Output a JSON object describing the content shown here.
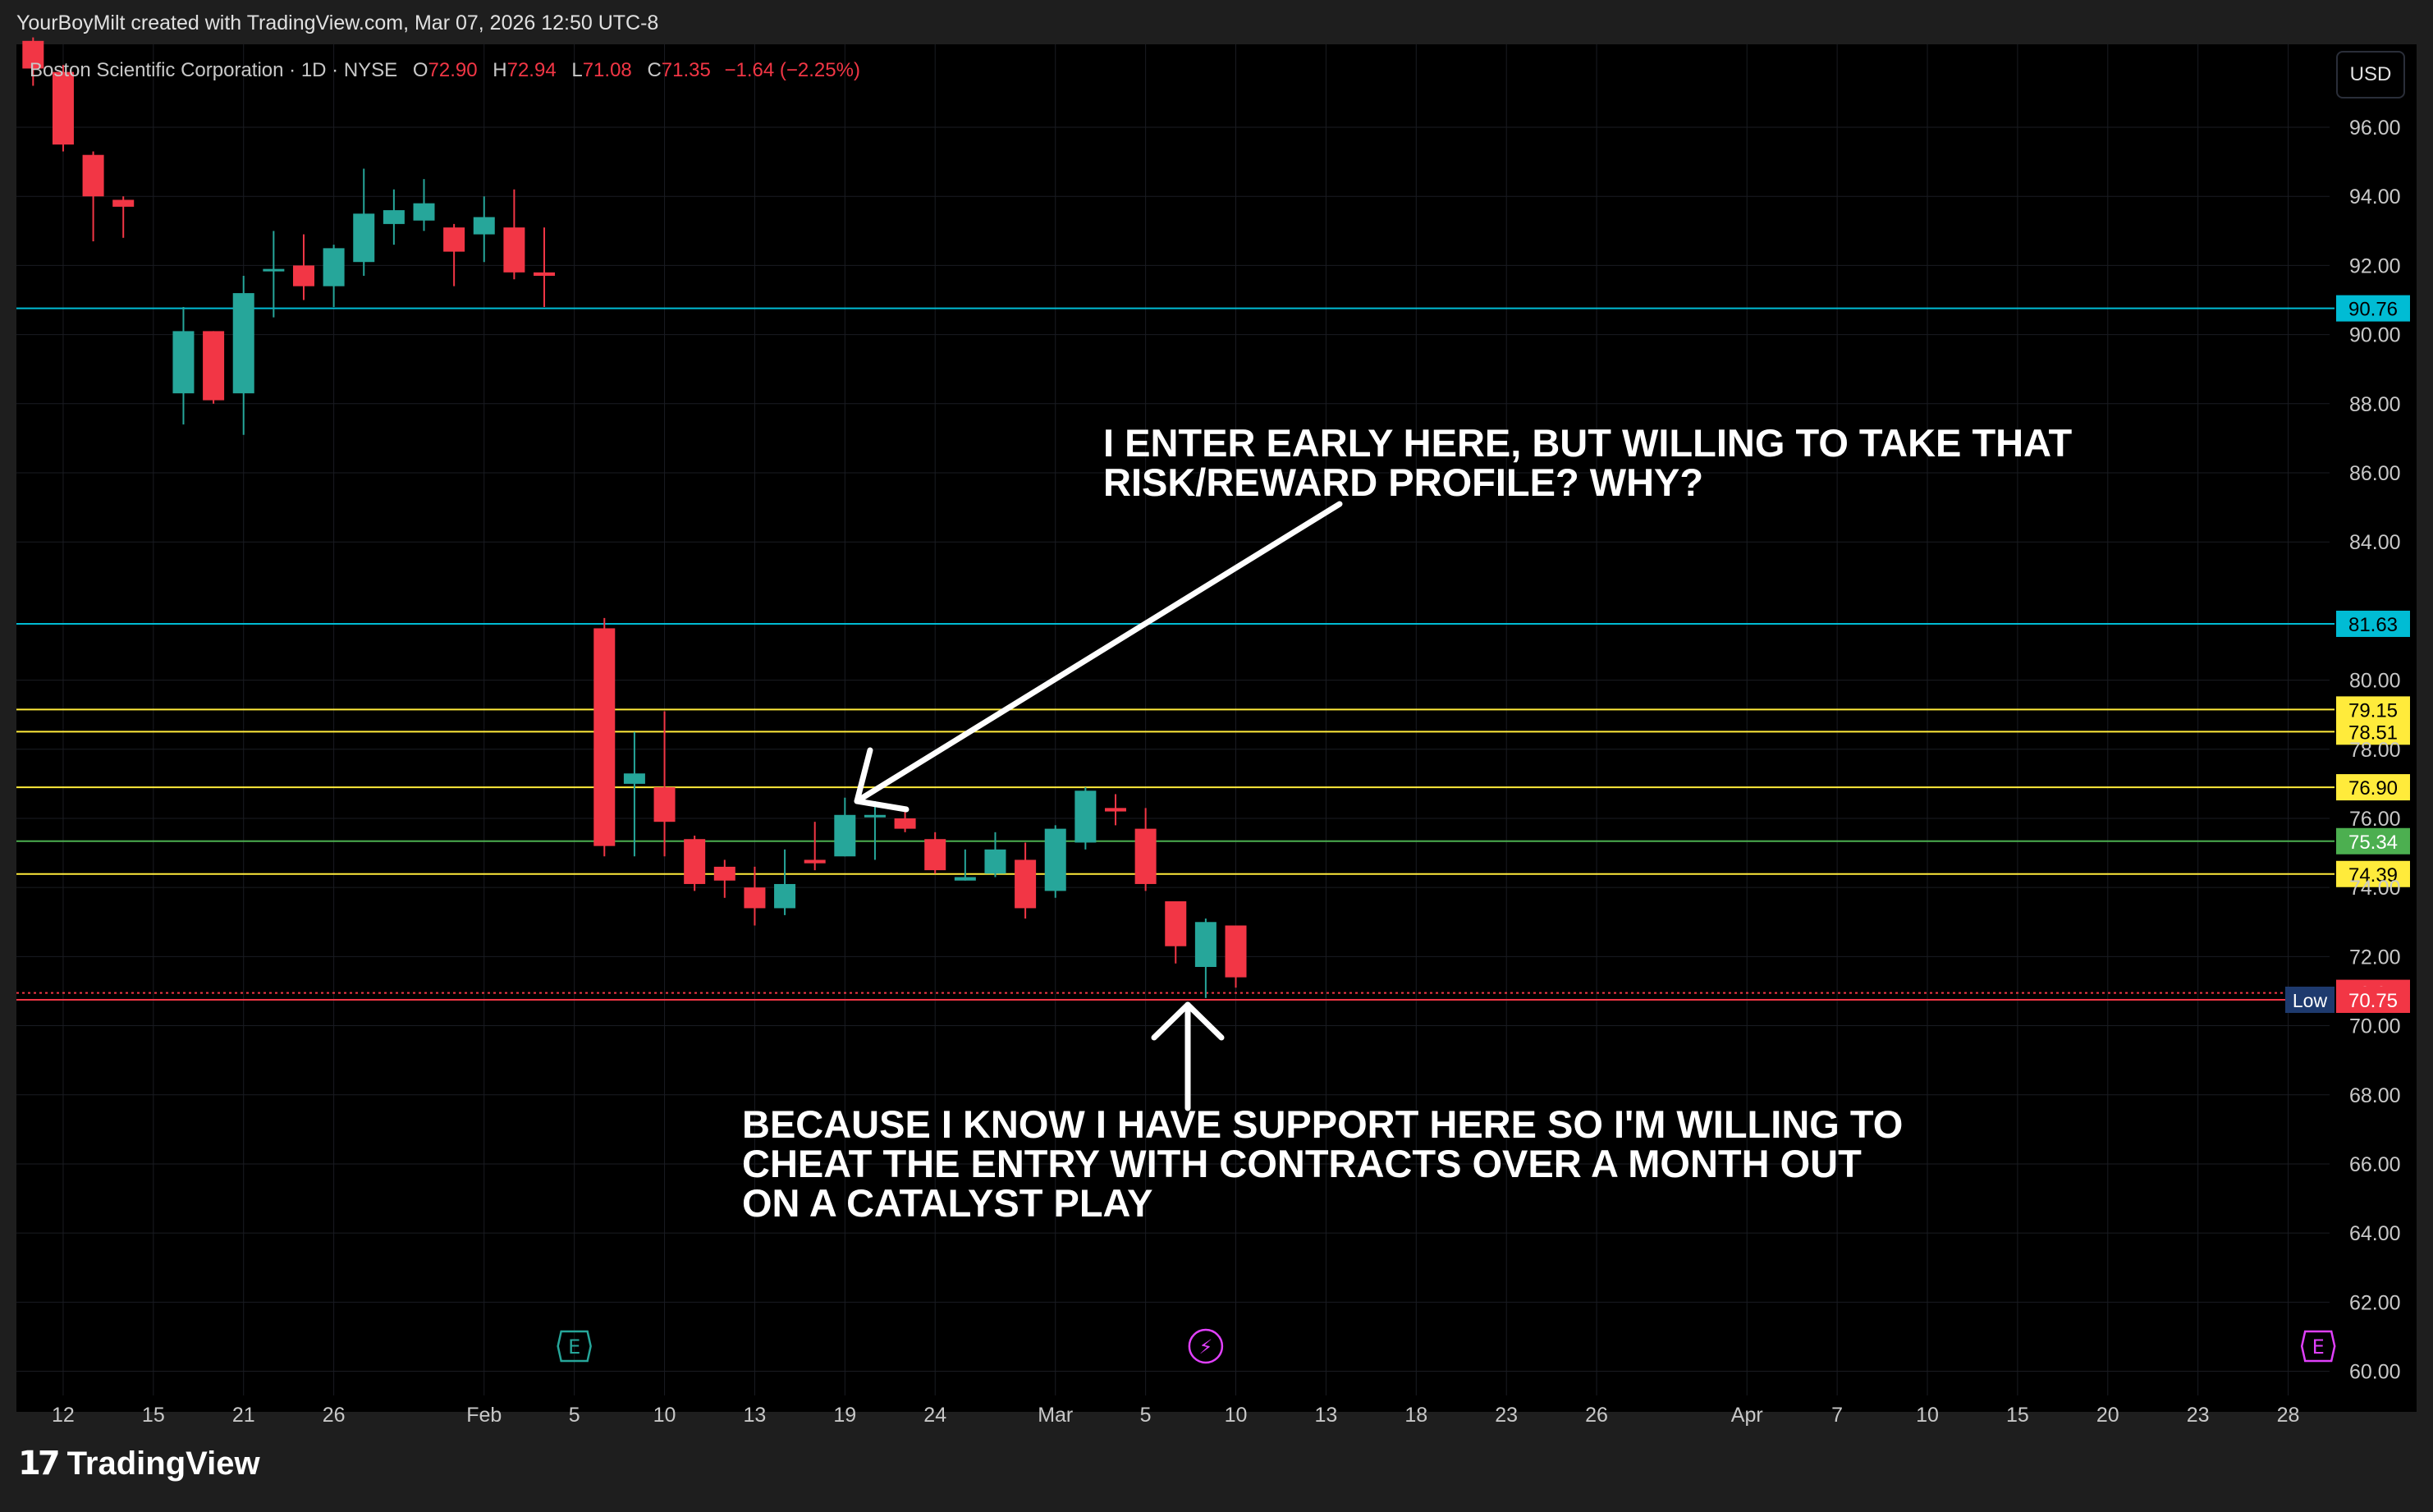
{
  "header": {
    "credit": "YourBoyMilt created with TradingView.com, Mar 07, 2026 12:50 UTC-8"
  },
  "legend": {
    "symbol": "Boston Scientific Corporation · 1D · NYSE",
    "open_label": "O",
    "open": "72.90",
    "high_label": "H",
    "high": "72.94",
    "low_label": "L",
    "low": "71.08",
    "close_label": "C",
    "close": "71.35",
    "change": "−1.64 (−2.25%)"
  },
  "currency_button": "USD",
  "annotations": {
    "entry_note": "I ENTER EARLY HERE, BUT WILLING TO TAKE THAT\nRISK/REWARD PROFILE? WHY?",
    "support_note": "BECAUSE I KNOW I HAVE SUPPORT HERE SO I'M WILLING TO\nCHEAT THE ENTRY WITH CONTRACTS OVER A MONTH OUT\nON A CATALYST PLAY"
  },
  "footer": {
    "brand": "TradingView"
  },
  "chart_data": {
    "type": "candlestick",
    "ylim": [
      59.3,
      98.4
    ],
    "y_ticks": [
      96,
      94,
      92,
      90,
      88,
      86,
      84,
      80,
      78,
      76,
      74,
      72,
      70,
      68,
      66,
      64,
      62,
      60
    ],
    "y_tick_labels": [
      "96.00",
      "94.00",
      "92.00",
      "90.00",
      "88.00",
      "86.00",
      "84.00",
      "80.00",
      "78.00",
      "76.00",
      "74.00",
      "72.00",
      "70.00",
      "68.00",
      "66.00",
      "64.00",
      "62.00",
      "60.00"
    ],
    "x_ticks": [
      {
        "label": "12",
        "bar": 1.5
      },
      {
        "label": "15",
        "bar": 4.5
      },
      {
        "label": "21",
        "bar": 7.5
      },
      {
        "label": "26",
        "bar": 10.5
      },
      {
        "label": "Feb",
        "bar": 15.5
      },
      {
        "label": "5",
        "bar": 18.5
      },
      {
        "label": "10",
        "bar": 21.5
      },
      {
        "label": "13",
        "bar": 24.5
      },
      {
        "label": "19",
        "bar": 27.5
      },
      {
        "label": "24",
        "bar": 30.5
      },
      {
        "label": "Mar",
        "bar": 34.5
      },
      {
        "label": "5",
        "bar": 37.5
      },
      {
        "label": "10",
        "bar": 40.5
      },
      {
        "label": "13",
        "bar": 43.5
      },
      {
        "label": "18",
        "bar": 46.5
      },
      {
        "label": "23",
        "bar": 49.5
      },
      {
        "label": "26",
        "bar": 52.5
      },
      {
        "label": "Apr",
        "bar": 57.5
      },
      {
        "label": "7",
        "bar": 60.5
      },
      {
        "label": "10",
        "bar": 63.5
      },
      {
        "label": "15",
        "bar": 66.5
      },
      {
        "label": "20",
        "bar": 69.5
      },
      {
        "label": "23",
        "bar": 72.5
      },
      {
        "label": "28",
        "bar": 75.5
      }
    ],
    "bar_count": 78,
    "candles": [
      {
        "o": 98.5,
        "h": 98.6,
        "l": 97.2,
        "c": 97.7
      },
      {
        "o": 97.6,
        "h": 97.8,
        "l": 95.3,
        "c": 95.5
      },
      {
        "o": 95.2,
        "h": 95.3,
        "l": 92.7,
        "c": 94.0
      },
      {
        "o": 93.9,
        "h": 94.0,
        "l": 92.8,
        "c": 93.7
      },
      {
        "o": null,
        "h": null,
        "l": null,
        "c": null
      },
      {
        "o": 88.3,
        "h": 90.8,
        "l": 87.4,
        "c": 90.1
      },
      {
        "o": 90.1,
        "h": 90.1,
        "l": 88.0,
        "c": 88.1
      },
      {
        "o": 88.3,
        "h": 91.7,
        "l": 87.1,
        "c": 91.2
      },
      {
        "o": 91.9,
        "h": 93.0,
        "l": 90.5,
        "c": 91.9
      },
      {
        "o": 92.0,
        "h": 92.9,
        "l": 91.0,
        "c": 91.4
      },
      {
        "o": 91.4,
        "h": 92.6,
        "l": 90.8,
        "c": 92.5
      },
      {
        "o": 92.1,
        "h": 94.8,
        "l": 91.7,
        "c": 93.5
      },
      {
        "o": 93.2,
        "h": 94.2,
        "l": 92.6,
        "c": 93.6
      },
      {
        "o": 93.3,
        "h": 94.5,
        "l": 93.0,
        "c": 93.8
      },
      {
        "o": 93.1,
        "h": 93.2,
        "l": 91.4,
        "c": 92.4
      },
      {
        "o": 92.9,
        "h": 94.0,
        "l": 92.1,
        "c": 93.4
      },
      {
        "o": 93.1,
        "h": 94.2,
        "l": 91.6,
        "c": 91.8
      },
      {
        "o": 91.8,
        "h": 93.1,
        "l": 90.8,
        "c": 91.7
      },
      {
        "o": null,
        "h": null,
        "l": null,
        "c": null
      },
      {
        "o": 81.5,
        "h": 81.8,
        "l": 74.9,
        "c": 75.2
      },
      {
        "o": 77.0,
        "h": 78.5,
        "l": 74.9,
        "c": 77.3
      },
      {
        "o": 76.9,
        "h": 79.1,
        "l": 74.9,
        "c": 75.9
      },
      {
        "o": 75.4,
        "h": 75.5,
        "l": 73.9,
        "c": 74.1
      },
      {
        "o": 74.6,
        "h": 74.8,
        "l": 73.7,
        "c": 74.2
      },
      {
        "o": 74.0,
        "h": 74.6,
        "l": 72.9,
        "c": 73.4
      },
      {
        "o": 73.4,
        "h": 75.1,
        "l": 73.2,
        "c": 74.1
      },
      {
        "o": 74.8,
        "h": 75.9,
        "l": 74.5,
        "c": 74.7
      },
      {
        "o": 74.9,
        "h": 76.6,
        "l": 74.9,
        "c": 76.1
      },
      {
        "o": 76.1,
        "h": 76.5,
        "l": 74.8,
        "c": 76.1
      },
      {
        "o": 76.0,
        "h": 76.2,
        "l": 75.6,
        "c": 75.7
      },
      {
        "o": 75.4,
        "h": 75.6,
        "l": 74.4,
        "c": 74.5
      },
      {
        "o": 74.2,
        "h": 75.1,
        "l": 74.2,
        "c": 74.3
      },
      {
        "o": 74.4,
        "h": 75.6,
        "l": 74.3,
        "c": 75.1
      },
      {
        "o": 74.8,
        "h": 75.3,
        "l": 73.1,
        "c": 73.4
      },
      {
        "o": 73.9,
        "h": 75.8,
        "l": 73.7,
        "c": 75.7
      },
      {
        "o": 75.3,
        "h": 76.9,
        "l": 75.1,
        "c": 76.8
      },
      {
        "o": 76.3,
        "h": 76.7,
        "l": 75.8,
        "c": 76.2
      },
      {
        "o": 75.7,
        "h": 76.3,
        "l": 73.9,
        "c": 74.1
      },
      {
        "o": 73.6,
        "h": 73.6,
        "l": 71.8,
        "c": 72.3
      },
      {
        "o": 71.7,
        "h": 73.1,
        "l": 70.8,
        "c": 73.0
      },
      {
        "o": 72.9,
        "h": 72.9,
        "l": 71.1,
        "c": 71.4
      }
    ],
    "horizontal_levels": [
      {
        "value": 90.76,
        "color": "#00bcd4",
        "label": "90.76"
      },
      {
        "value": 81.63,
        "color": "#00bcd4",
        "label": "81.63"
      },
      {
        "value": 79.15,
        "color": "#ffeb3b",
        "label": "79.15"
      },
      {
        "value": 78.51,
        "color": "#ffeb3b",
        "label": "78.51"
      },
      {
        "value": 76.9,
        "color": "#ffeb3b",
        "label": "76.90"
      },
      {
        "value": 75.34,
        "color": "#4caf50",
        "label": "75.34"
      },
      {
        "value": 74.39,
        "color": "#ffeb3b",
        "label": "74.39"
      },
      {
        "value": 70.95,
        "color": "#f23645",
        "label": "70.95",
        "dotted": true
      },
      {
        "value": 70.75,
        "color": "#f23645",
        "label": "70.75",
        "tag": "Low",
        "tag_bg": "#1e3a6e"
      }
    ],
    "events": [
      {
        "bar": 18,
        "symbol": "E",
        "color": "#26a69a",
        "kind": "earnings"
      },
      {
        "bar": 39,
        "symbol": "⚡",
        "color": "#e040fb",
        "kind": "dividend"
      },
      {
        "bar": 76,
        "symbol": "E",
        "color": "#e040fb",
        "kind": "earnings"
      }
    ],
    "colors": {
      "up": "#26a69a",
      "down": "#f23645",
      "grid": "#1a1c22",
      "axis_text": "#c8c8c8"
    }
  }
}
